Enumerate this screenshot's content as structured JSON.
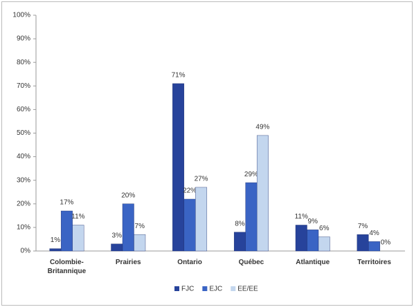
{
  "chart_data": {
    "type": "bar",
    "categories": [
      "Colombie-\nBritannique",
      "Prairies",
      "Ontario",
      "Québec",
      "Atlantique",
      "Territoires"
    ],
    "series": [
      {
        "name": "FJC",
        "color": "#27439b",
        "values": [
          1,
          3,
          71,
          8,
          11,
          7
        ],
        "value_labels": [
          "1%",
          "3%",
          "71%",
          "8%",
          "11%",
          "7%"
        ]
      },
      {
        "name": "EJC",
        "color": "#3a64c4",
        "values": [
          17,
          20,
          22,
          29,
          9,
          4
        ],
        "value_labels": [
          "17%",
          "20%",
          "22%",
          "29%",
          "9%",
          "4%"
        ]
      },
      {
        "name": "EE/EE",
        "color": "#c3d6ee",
        "values": [
          11,
          7,
          27,
          49,
          6,
          0
        ],
        "value_labels": [
          "11%",
          "7%",
          "27%",
          "49%",
          "6%",
          "0%"
        ]
      }
    ],
    "ylim": [
      0,
      100
    ],
    "yticks": [
      {
        "value": 0,
        "label": "0%"
      },
      {
        "value": 10,
        "label": "10%"
      },
      {
        "value": 20,
        "label": "20%"
      },
      {
        "value": 30,
        "label": "30%"
      },
      {
        "value": 40,
        "label": "40%"
      },
      {
        "value": 50,
        "label": "50%"
      },
      {
        "value": 60,
        "label": "60%"
      },
      {
        "value": 70,
        "label": "70%"
      },
      {
        "value": 80,
        "label": "80%"
      },
      {
        "value": 90,
        "label": "90%"
      },
      {
        "value": 100,
        "label": "100%"
      }
    ],
    "grid": false
  }
}
